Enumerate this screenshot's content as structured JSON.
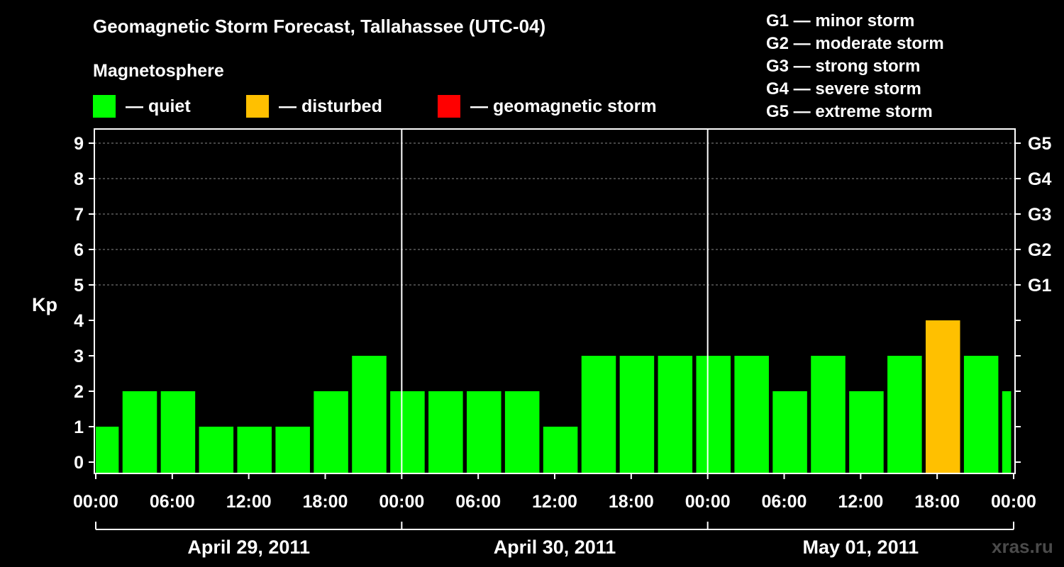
{
  "title": "Geomagnetic Storm Forecast, Tallahassee (UTC-04)",
  "subtitle": "Magnetosphere",
  "legend": [
    {
      "label": "— quiet",
      "color": "#00ff00"
    },
    {
      "label": "— disturbed",
      "color": "#ffc000"
    },
    {
      "label": "— geomagnetic storm",
      "color": "#ff0000"
    }
  ],
  "g_scale": [
    "G1 — minor storm",
    "G2 — moderate storm",
    "G3 — strong storm",
    "G4 — severe storm",
    "G5 — extreme storm"
  ],
  "watermark": "xras.ru",
  "chart_data": {
    "type": "bar",
    "ylabel": "Kp",
    "ylim": [
      0,
      9
    ],
    "yticks": [
      "0",
      "1",
      "2",
      "3",
      "4",
      "5",
      "6",
      "7",
      "8",
      "9"
    ],
    "right_ticks": [
      {
        "value": 5,
        "label": "G1"
      },
      {
        "value": 6,
        "label": "G2"
      },
      {
        "value": 7,
        "label": "G3"
      },
      {
        "value": 8,
        "label": "G4"
      },
      {
        "value": 9,
        "label": "G5"
      }
    ],
    "xlim_hours": [
      0,
      72
    ],
    "xticks": [
      "00:00",
      "06:00",
      "12:00",
      "18:00",
      "00:00",
      "06:00",
      "12:00",
      "18:00",
      "00:00",
      "06:00",
      "12:00",
      "18:00",
      "00:00"
    ],
    "days": [
      "April 29, 2011",
      "April 30, 2011",
      "May 01, 2011"
    ],
    "thresholds": {
      "disturbed": 4,
      "storm": 5
    },
    "grid": "horizontal dashed at 5-9",
    "bars": [
      {
        "start": 0,
        "end": 1.8,
        "kp": 1
      },
      {
        "start": 2.1,
        "end": 4.8,
        "kp": 2
      },
      {
        "start": 5.1,
        "end": 7.8,
        "kp": 2
      },
      {
        "start": 8.1,
        "end": 10.8,
        "kp": 1
      },
      {
        "start": 11.1,
        "end": 13.8,
        "kp": 1
      },
      {
        "start": 14.1,
        "end": 16.8,
        "kp": 1
      },
      {
        "start": 17.1,
        "end": 19.8,
        "kp": 2
      },
      {
        "start": 20.1,
        "end": 22.8,
        "kp": 3
      },
      {
        "start": 23.1,
        "end": 25.8,
        "kp": 2
      },
      {
        "start": 26.1,
        "end": 28.8,
        "kp": 2
      },
      {
        "start": 29.1,
        "end": 31.8,
        "kp": 2
      },
      {
        "start": 32.1,
        "end": 34.8,
        "kp": 2
      },
      {
        "start": 35.1,
        "end": 37.8,
        "kp": 1
      },
      {
        "start": 38.1,
        "end": 40.8,
        "kp": 3
      },
      {
        "start": 41.1,
        "end": 43.8,
        "kp": 3
      },
      {
        "start": 44.1,
        "end": 46.8,
        "kp": 3
      },
      {
        "start": 47.1,
        "end": 49.8,
        "kp": 3
      },
      {
        "start": 50.1,
        "end": 52.8,
        "kp": 3
      },
      {
        "start": 53.1,
        "end": 55.8,
        "kp": 2
      },
      {
        "start": 56.1,
        "end": 58.8,
        "kp": 3
      },
      {
        "start": 59.1,
        "end": 61.8,
        "kp": 2
      },
      {
        "start": 62.1,
        "end": 64.8,
        "kp": 3
      },
      {
        "start": 65.1,
        "end": 67.8,
        "kp": 4
      },
      {
        "start": 68.1,
        "end": 70.8,
        "kp": 3
      },
      {
        "start": 71.1,
        "end": 71.8,
        "kp": 2
      }
    ]
  }
}
